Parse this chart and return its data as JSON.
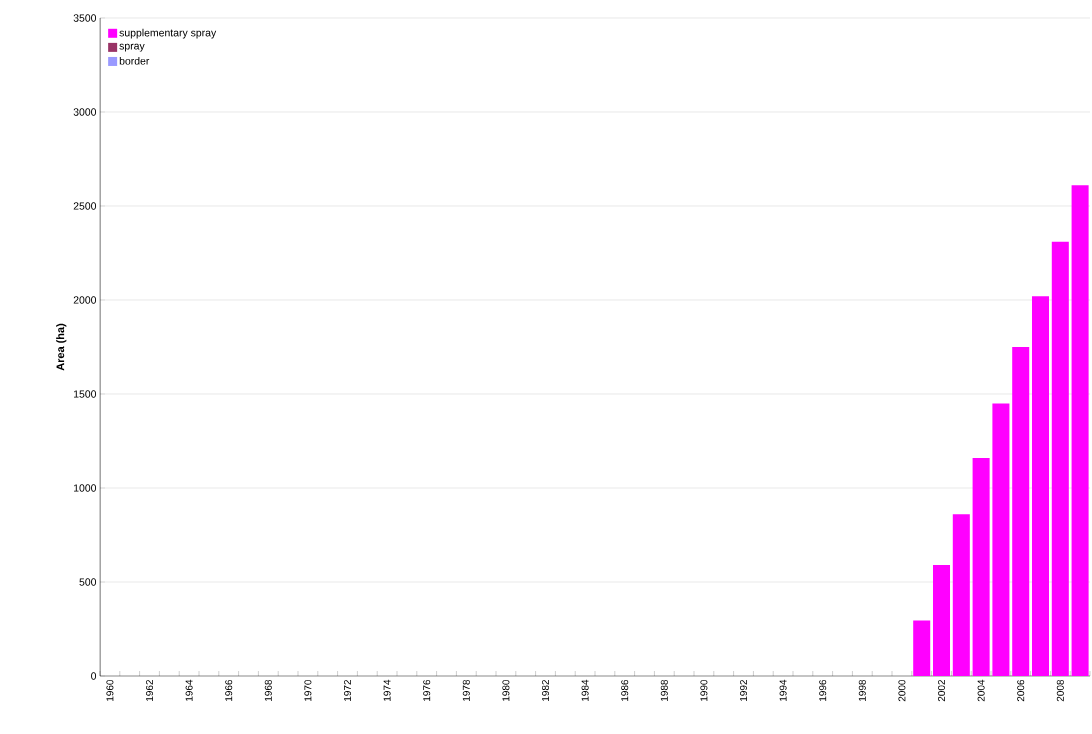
{
  "chart_data": {
    "type": "bar",
    "stacked": true,
    "ylabel": "Area (ha)",
    "categories": [
      "1960",
      null,
      "1962",
      null,
      "1964",
      null,
      "1966",
      null,
      "1968",
      null,
      "1970",
      null,
      "1972",
      null,
      "1974",
      null,
      "1976",
      null,
      "1978",
      null,
      "1980",
      null,
      "1982",
      null,
      "1984",
      null,
      "1986",
      null,
      "1988",
      null,
      "1990",
      null,
      "1992",
      null,
      "1994",
      null,
      "1996",
      null,
      "1998",
      null,
      "2000",
      null,
      "2002",
      null,
      "2004",
      null,
      "2006",
      null,
      "2008",
      null
    ],
    "series": [
      {
        "name": "supplementary spray",
        "color": "#ff00ff",
        "values": [
          null,
          null,
          null,
          null,
          null,
          null,
          null,
          null,
          null,
          null,
          null,
          null,
          null,
          null,
          null,
          null,
          null,
          null,
          null,
          null,
          null,
          null,
          null,
          null,
          null,
          null,
          null,
          null,
          null,
          null,
          null,
          null,
          null,
          null,
          null,
          null,
          null,
          null,
          null,
          null,
          null,
          295,
          590,
          860,
          1160,
          1450,
          1750,
          2020,
          2310,
          2610
        ]
      },
      {
        "name": "spray",
        "color": "#993366",
        "values": [
          null,
          null,
          null,
          null,
          null,
          null,
          null,
          null,
          null,
          null,
          null,
          null,
          null,
          null,
          null,
          null,
          null,
          null,
          null,
          null,
          null,
          null,
          null,
          null,
          null,
          null,
          null,
          null,
          null,
          null,
          null,
          null,
          null,
          null,
          null,
          null,
          null,
          null,
          null,
          null,
          null,
          null,
          null,
          null,
          null,
          null,
          null,
          null,
          null,
          null
        ]
      },
      {
        "name": "border",
        "color": "#9999ff",
        "values": [
          null,
          null,
          null,
          null,
          null,
          null,
          null,
          null,
          null,
          null,
          null,
          null,
          null,
          null,
          null,
          null,
          null,
          null,
          null,
          null,
          null,
          null,
          null,
          null,
          null,
          null,
          null,
          null,
          null,
          null,
          null,
          null,
          null,
          null,
          null,
          null,
          null,
          null,
          null,
          null,
          null,
          null,
          null,
          null,
          null,
          null,
          null,
          null,
          null,
          null
        ]
      }
    ],
    "ylim": [
      0,
      3500
    ],
    "yticks": [
      0,
      500,
      1000,
      1500,
      2000,
      2500,
      3000,
      3500
    ],
    "grid": "y",
    "legend": "top left"
  }
}
